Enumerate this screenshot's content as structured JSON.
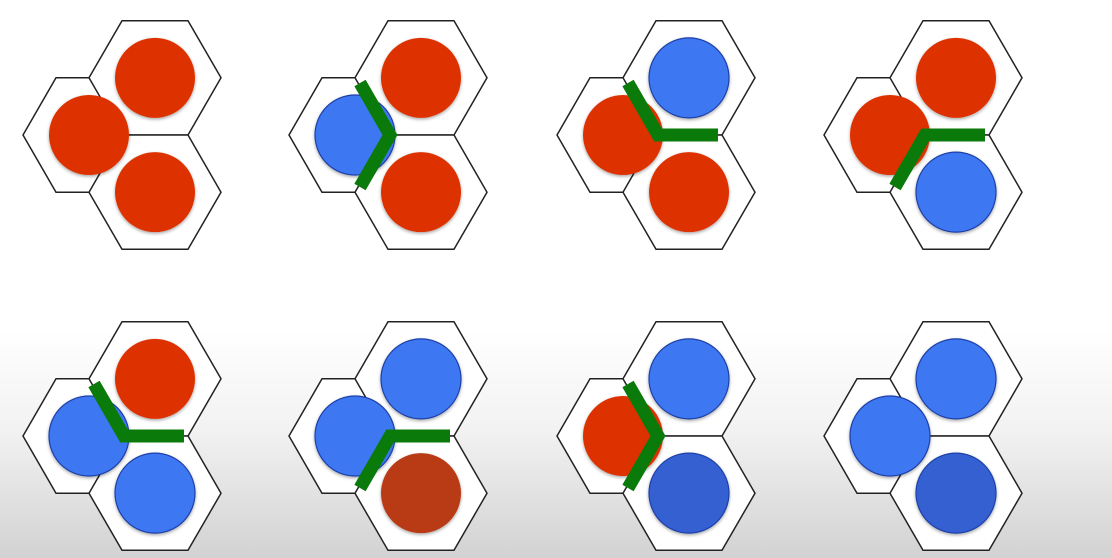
{
  "colors": {
    "red": "#dd3300",
    "red_dark": "#b93a14",
    "blue": "#3d78f2",
    "blue_dark": "#3560d2",
    "green": "#0a7a0a",
    "hex_stroke": "#222222",
    "hex_fill": "#ffffff"
  },
  "configurations": [
    {
      "cells": [
        "red",
        "red",
        "red"
      ],
      "wall": "none"
    },
    {
      "cells": [
        "blue",
        "red",
        "red"
      ],
      "wall": "around-left"
    },
    {
      "cells": [
        "red",
        "blue",
        "red"
      ],
      "wall": "around-top"
    },
    {
      "cells": [
        "red",
        "red",
        "blue"
      ],
      "wall": "around-bottom"
    },
    {
      "cells": [
        "blue",
        "red",
        "blue"
      ],
      "wall": "around-top"
    },
    {
      "cells": [
        "blue",
        "blue",
        "red_dark"
      ],
      "wall": "around-bottom"
    },
    {
      "cells": [
        "red",
        "blue",
        "blue_dark"
      ],
      "wall": "around-left"
    },
    {
      "cells": [
        "blue",
        "blue",
        "blue_dark"
      ],
      "wall": "none"
    }
  ]
}
